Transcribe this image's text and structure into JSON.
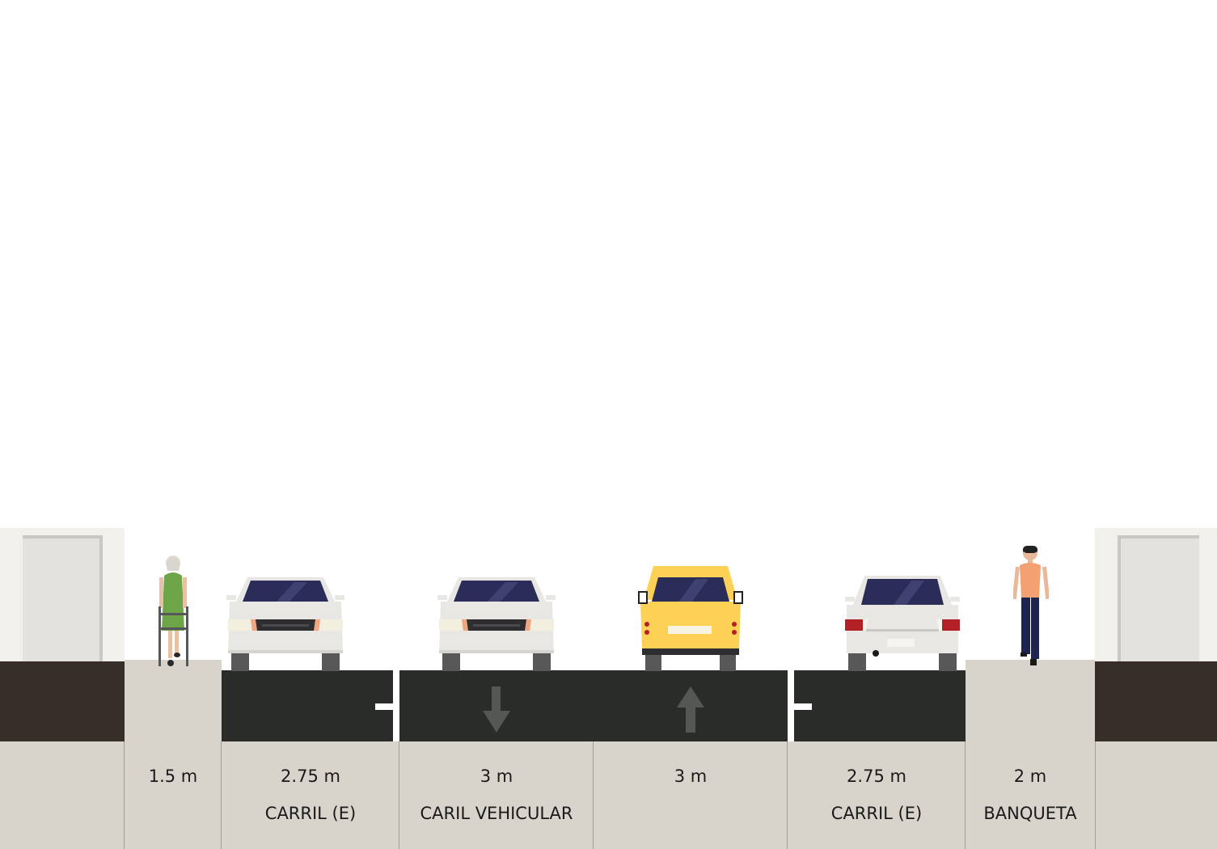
{
  "segments": [
    {
      "width_label": "",
      "name": ""
    },
    {
      "width_label": "1.5 m",
      "name": ""
    },
    {
      "width_label": "2.75 m",
      "name": "CARRIL (E)"
    },
    {
      "width_label": "3 m",
      "name": "CARIL VEHICULAR"
    },
    {
      "width_label": "3 m",
      "name": ""
    },
    {
      "width_label": "2.75 m",
      "name": "CARRIL (E)"
    },
    {
      "width_label": "2 m",
      "name": "BANQUETA"
    },
    {
      "width_label": "",
      "name": ""
    }
  ],
  "lane_arrows": [
    {
      "lane": 3,
      "direction": "down-arrow-icon"
    },
    {
      "lane": 4,
      "direction": "up-arrow-icon"
    }
  ],
  "vehicles": [
    {
      "lane": 2,
      "kind": "white-sedan-front-icon"
    },
    {
      "lane": 3,
      "kind": "white-sedan-front-icon"
    },
    {
      "lane": 4,
      "kind": "yellow-taxi-rear-icon"
    },
    {
      "lane": 5,
      "kind": "white-sedan-rear-icon"
    }
  ],
  "people": [
    {
      "segment": 1,
      "kind": "elderly-walker-icon"
    },
    {
      "segment": 6,
      "kind": "pedestrian-icon"
    }
  ],
  "colors": {
    "asphalt": "#2a2c2a",
    "sidewalk": "#d8d4cc",
    "building_wall": "#f1f0ec",
    "building_base": "#372d29",
    "lane_marking": "#ffffff",
    "taxi": "#fdd056",
    "car": "#e8e7e3",
    "windshield": "#2b2d58"
  }
}
